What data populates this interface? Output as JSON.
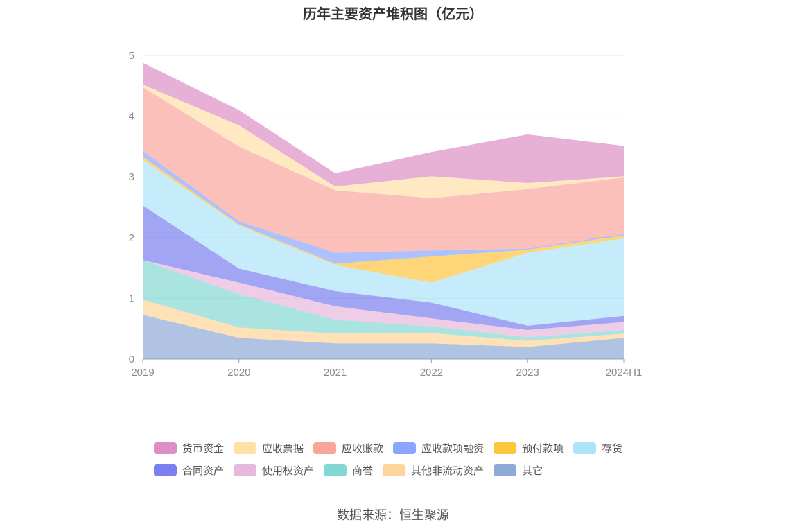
{
  "chart_data": {
    "type": "area",
    "stacked": true,
    "title": "历年主要资产堆积图（亿元）",
    "x": [
      "2019",
      "2020",
      "2021",
      "2022",
      "2023",
      "2024H1"
    ],
    "ylim": [
      0,
      5
    ],
    "yticks": [
      0,
      1,
      2,
      3,
      4,
      5
    ],
    "grid": true,
    "legend_position": "bottom",
    "series": [
      {
        "name": "其它",
        "color": "#8eaad6",
        "values": [
          0.73,
          0.35,
          0.26,
          0.26,
          0.2,
          0.35
        ]
      },
      {
        "name": "其他非流动资产",
        "color": "#ffd49a",
        "values": [
          0.25,
          0.17,
          0.16,
          0.17,
          0.1,
          0.07
        ]
      },
      {
        "name": "商誉",
        "color": "#84d8d3",
        "values": [
          0.65,
          0.55,
          0.23,
          0.11,
          0.06,
          0.06
        ]
      },
      {
        "name": "使用权资产",
        "color": "#e8b8dc",
        "values": [
          0.0,
          0.19,
          0.22,
          0.13,
          0.12,
          0.13
        ]
      },
      {
        "name": "合同资产",
        "color": "#7b7ff0",
        "values": [
          0.9,
          0.23,
          0.25,
          0.26,
          0.07,
          0.1
        ]
      },
      {
        "name": "存货",
        "color": "#aee2f8",
        "values": [
          0.75,
          0.71,
          0.43,
          0.33,
          1.2,
          1.28
        ]
      },
      {
        "name": "预付款项",
        "color": "#ffc53d",
        "values": [
          0.05,
          0.02,
          0.02,
          0.43,
          0.05,
          0.05
        ]
      },
      {
        "name": "应收款项融资",
        "color": "#8aa6ff",
        "values": [
          0.1,
          0.05,
          0.18,
          0.1,
          0.02,
          0.02
        ]
      },
      {
        "name": "应收账款",
        "color": "#f9a59b",
        "values": [
          1.05,
          1.23,
          1.03,
          0.86,
          0.98,
          0.93
        ]
      },
      {
        "name": "应收票据",
        "color": "#ffe0a8",
        "values": [
          0.04,
          0.35,
          0.06,
          0.36,
          0.1,
          0.02
        ]
      },
      {
        "name": "货币资金",
        "color": "#dd8fc4",
        "values": [
          0.36,
          0.25,
          0.22,
          0.4,
          0.8,
          0.5
        ]
      }
    ]
  },
  "legend_rows": [
    [
      "货币资金",
      "应收票据",
      "应收账款",
      "应收款项融资",
      "预付款项",
      "存货"
    ],
    [
      "合同资产",
      "使用权资产",
      "商誉",
      "其他非流动资产",
      "其它"
    ]
  ],
  "source": "数据来源：恒生聚源"
}
